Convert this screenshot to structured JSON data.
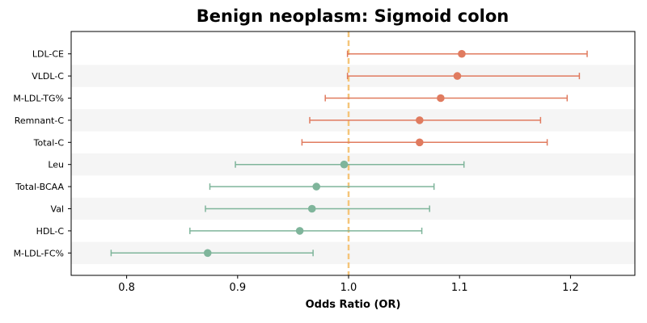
{
  "chart_data": {
    "type": "scatter",
    "title": "Benign neoplasm: Sigmoid colon",
    "xlabel": "Odds Ratio (OR)",
    "ylabel": "",
    "xlim": [
      0.75,
      1.258
    ],
    "xticks": [
      "0.8",
      "0.9",
      "1.0",
      "1.1",
      "1.2"
    ],
    "reference_line": 1.0,
    "reference_color": "#f5c57a",
    "grid": false,
    "row_stripe_color": "#f5f5f5",
    "categories": [
      "LDL-CE",
      "VLDL-C",
      "M-LDL-TG%",
      "Remnant-C",
      "Total-C",
      "Leu",
      "Total-BCAA",
      "Val",
      "HDL-C",
      "M-LDL-FC%"
    ],
    "points": [
      {
        "label": "LDL-CE",
        "or": 1.102,
        "lower": 0.999,
        "upper": 1.215,
        "color": "#e07b5f"
      },
      {
        "label": "VLDL-C",
        "or": 1.098,
        "lower": 0.999,
        "upper": 1.208,
        "color": "#e07b5f"
      },
      {
        "label": "M-LDL-TG%",
        "or": 1.083,
        "lower": 0.979,
        "upper": 1.197,
        "color": "#e07b5f"
      },
      {
        "label": "Remnant-C",
        "or": 1.064,
        "lower": 0.965,
        "upper": 1.173,
        "color": "#e07b5f"
      },
      {
        "label": "Total-C",
        "or": 1.064,
        "lower": 0.958,
        "upper": 1.179,
        "color": "#e07b5f"
      },
      {
        "label": "Leu",
        "or": 0.996,
        "lower": 0.898,
        "upper": 1.104,
        "color": "#7fb59b"
      },
      {
        "label": "Total-BCAA",
        "or": 0.971,
        "lower": 0.875,
        "upper": 1.077,
        "color": "#7fb59b"
      },
      {
        "label": "Val",
        "or": 0.967,
        "lower": 0.871,
        "upper": 1.073,
        "color": "#7fb59b"
      },
      {
        "label": "HDL-C",
        "or": 0.956,
        "lower": 0.857,
        "upper": 1.066,
        "color": "#7fb59b"
      },
      {
        "label": "M-LDL-FC%",
        "or": 0.873,
        "lower": 0.786,
        "upper": 0.968,
        "color": "#7fb59b"
      }
    ]
  }
}
